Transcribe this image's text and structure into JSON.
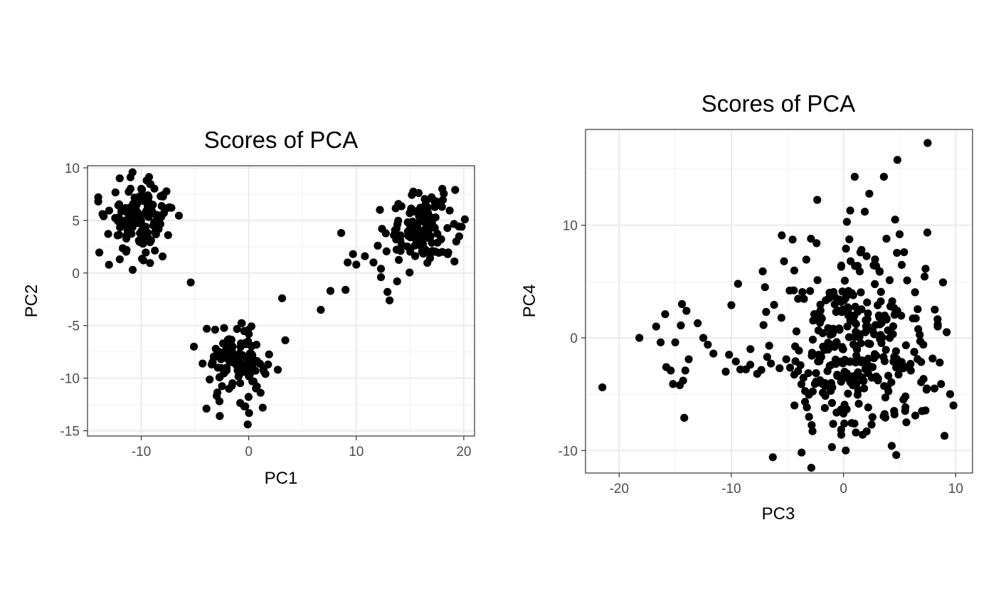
{
  "colors": {
    "background": "#ffffff",
    "point": "#000000",
    "panel_border": "#333333",
    "grid_major": "#ebebeb",
    "grid_minor": "#f2f2f2",
    "tick_text": "#4d4d4d"
  },
  "chart_data": [
    {
      "type": "scatter",
      "title": "Scores of PCA",
      "xlabel": "PC1",
      "ylabel": "PC2",
      "xlim": [
        -15,
        21
      ],
      "ylim": [
        -15.5,
        10.2
      ],
      "x_ticks": [
        -10,
        0,
        10,
        20
      ],
      "x_tick_labels": [
        "-10",
        "0",
        "10",
        "20"
      ],
      "y_ticks": [
        10,
        5,
        0,
        -5,
        -10,
        -15
      ],
      "y_tick_labels": [
        "10",
        "5",
        "0",
        "-5",
        "-10",
        "-15"
      ],
      "grid": true,
      "legend": "none",
      "clusters": [
        {
          "center": [
            -10,
            5.2
          ],
          "spread": [
            1.5,
            1.6
          ],
          "n": 140
        },
        {
          "center": [
            -1.2,
            -8.6
          ],
          "spread": [
            1.4,
            1.5
          ],
          "n": 120
        },
        {
          "center": [
            16.3,
            4.2
          ],
          "spread": [
            1.5,
            1.6
          ],
          "n": 115
        }
      ],
      "points": [
        [
          -14,
          7.2
        ],
        [
          -14,
          6.8
        ],
        [
          -13.5,
          5.4
        ],
        [
          -12,
          9.0
        ],
        [
          -11,
          9.1
        ],
        [
          -10,
          8.0
        ],
        [
          -9.5,
          8.8
        ],
        [
          -10.8,
          0.3
        ],
        [
          -12,
          1.3
        ],
        [
          -9.8,
          1.2
        ],
        [
          -7.5,
          6.2
        ],
        [
          -7.5,
          3.6
        ],
        [
          -8,
          7.4
        ],
        [
          -5.4,
          -0.9
        ],
        [
          -5.1,
          -7.0
        ],
        [
          -3.9,
          -5.3
        ],
        [
          -2.7,
          -13.6
        ],
        [
          -0.1,
          -14.4
        ],
        [
          1.3,
          -12.8
        ],
        [
          0.0,
          -5.8
        ],
        [
          2.7,
          -9.2
        ],
        [
          3.1,
          -2.4
        ],
        [
          3.4,
          -6.4
        ],
        [
          6.7,
          -3.5
        ],
        [
          7.6,
          -1.7
        ],
        [
          8.6,
          3.8
        ],
        [
          9.0,
          -1.6
        ],
        [
          9.2,
          1.0
        ],
        [
          9.7,
          1.8
        ],
        [
          10.0,
          0.8
        ],
        [
          10.8,
          1.6
        ],
        [
          11.6,
          1.0
        ],
        [
          12.0,
          2.6
        ],
        [
          12.2,
          6.0
        ],
        [
          12.3,
          -0.4
        ],
        [
          12.3,
          0.4
        ],
        [
          12.4,
          4.2
        ],
        [
          12.9,
          -1.8
        ],
        [
          13.1,
          -2.6
        ],
        [
          13.5,
          3.6
        ],
        [
          13.8,
          -0.8
        ],
        [
          15.8,
          7.6
        ],
        [
          17.0,
          7.2
        ],
        [
          18.0,
          8.0
        ],
        [
          19.2,
          7.9
        ],
        [
          19.8,
          4.4
        ],
        [
          20.1,
          5.1
        ],
        [
          19.3,
          3.0
        ],
        [
          18.0,
          2.0
        ]
      ]
    },
    {
      "type": "scatter",
      "title": "Scores of PCA",
      "xlabel": "PC3",
      "ylabel": "PC4",
      "xlim": [
        -23,
        11.5
      ],
      "ylim": [
        -12,
        18.5
      ],
      "x_ticks": [
        -20,
        -10,
        0,
        10
      ],
      "x_tick_labels": [
        "-20",
        "-10",
        "0",
        "10"
      ],
      "y_ticks": [
        10,
        0,
        -10
      ],
      "y_tick_labels": [
        "10",
        "0",
        "-10"
      ],
      "grid": true,
      "legend": "none",
      "clusters": [
        {
          "center": [
            1.0,
            -0.4
          ],
          "spread": [
            3.2,
            4.0
          ],
          "n": 330
        }
      ],
      "points": [
        [
          -21.5,
          -4.4
        ],
        [
          -18.2,
          0.0
        ],
        [
          -16.7,
          1.0
        ],
        [
          -16.3,
          -0.4
        ],
        [
          -15.9,
          2.1
        ],
        [
          -15.8,
          -2.6
        ],
        [
          -15.4,
          -2.9
        ],
        [
          -15.2,
          -4.1
        ],
        [
          -15.0,
          -0.4
        ],
        [
          -14.6,
          -4.2
        ],
        [
          -14.5,
          1.1
        ],
        [
          -14.4,
          3.0
        ],
        [
          -14.3,
          -3.8
        ],
        [
          -14.2,
          -7.1
        ],
        [
          -14.1,
          -2.9
        ],
        [
          -14.0,
          2.4
        ],
        [
          -13.8,
          -1.9
        ],
        [
          -13.0,
          1.3
        ],
        [
          -12.5,
          0.0
        ],
        [
          -12.1,
          -0.6
        ],
        [
          -11.6,
          -1.4
        ],
        [
          -10.5,
          -3.0
        ],
        [
          -10.2,
          -1.5
        ],
        [
          -10.0,
          2.9
        ],
        [
          -9.6,
          -2.1
        ],
        [
          -9.4,
          4.8
        ],
        [
          -9.2,
          -2.8
        ],
        [
          -8.7,
          -2.8
        ],
        [
          -8.3,
          -1.0
        ],
        [
          -7.7,
          -3.2
        ],
        [
          -7.2,
          5.9
        ],
        [
          -7.0,
          4.5
        ],
        [
          -6.9,
          2.3
        ],
        [
          -6.8,
          -1.7
        ],
        [
          -6.3,
          -10.6
        ],
        [
          -5.7,
          -2.7
        ],
        [
          -5.5,
          9.1
        ],
        [
          -5.3,
          6.8
        ],
        [
          -5.1,
          -1.9
        ],
        [
          -4.8,
          4.2
        ],
        [
          -2.9,
          8.8
        ],
        [
          -2.4,
          8.4
        ],
        [
          0.3,
          10.3
        ],
        [
          0.6,
          11.3
        ],
        [
          1.0,
          14.3
        ],
        [
          1.6,
          7.8
        ],
        [
          1.9,
          11.2
        ],
        [
          2.3,
          12.8
        ],
        [
          3.6,
          14.3
        ],
        [
          4.6,
          10.5
        ],
        [
          4.8,
          15.8
        ],
        [
          5.0,
          9.2
        ],
        [
          5.4,
          7.6
        ],
        [
          7.5,
          17.3
        ],
        [
          4.7,
          -10.4
        ],
        [
          5.6,
          -7.5
        ],
        [
          6.4,
          -6.9
        ],
        [
          7.0,
          -6.5
        ],
        [
          7.4,
          -4.6
        ],
        [
          8.1,
          -4.5
        ],
        [
          8.4,
          1.2
        ],
        [
          8.7,
          -4.1
        ],
        [
          9.0,
          -8.7
        ],
        [
          9.2,
          0.5
        ],
        [
          9.5,
          -5.0
        ],
        [
          9.8,
          -6.0
        ],
        [
          -0.2,
          -8.6
        ],
        [
          1.1,
          -8.4
        ],
        [
          1.7,
          -8.6
        ],
        [
          2.5,
          -7.7
        ],
        [
          0.2,
          -10.0
        ]
      ]
    }
  ]
}
